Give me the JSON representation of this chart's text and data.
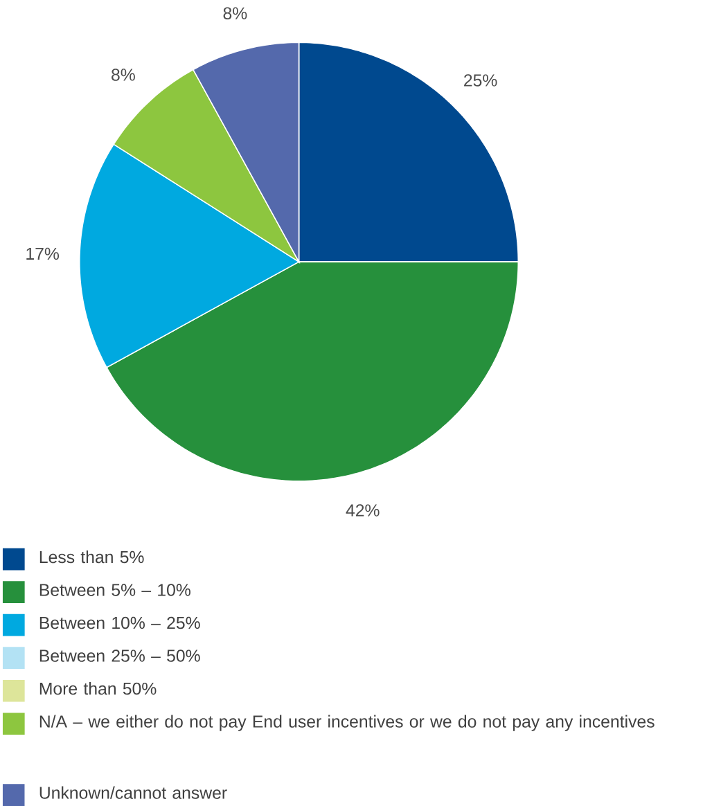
{
  "chart_data": {
    "type": "pie",
    "categories": [
      "Less than 5%",
      "Between 5% – 10%",
      "Between 10% – 25%",
      "Between 25% – 50%",
      "More than 50%",
      "N/A – we either do not pay End user incentives or we do not pay any incentives",
      "Unknown/cannot answer"
    ],
    "values": [
      25,
      42,
      17,
      0,
      0,
      8,
      8
    ],
    "colors": [
      "#00498f",
      "#26903c",
      "#00a9e0",
      "#b3e2f4",
      "#dde59a",
      "#8dc63f",
      "#5469ac"
    ],
    "value_labels": [
      "25%",
      "42%",
      "17%",
      null,
      null,
      "8%",
      "8%"
    ],
    "legend": "bottom"
  }
}
